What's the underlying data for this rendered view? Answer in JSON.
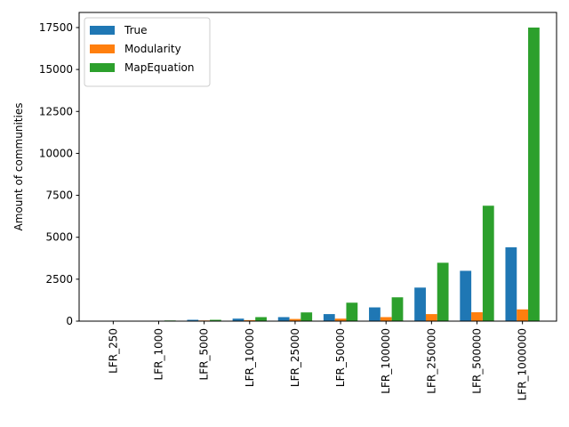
{
  "chart_data": {
    "type": "bar",
    "categories": [
      "LFR_250",
      "LFR_1000",
      "LFR_5000",
      "LFR_10000",
      "LFR_25000",
      "LFR_50000",
      "LFR_100000",
      "LFR_250000",
      "LFR_500000",
      "LFR_1000000"
    ],
    "series": [
      {
        "name": "True",
        "color": "#1f77b4",
        "values": [
          5,
          20,
          80,
          150,
          240,
          420,
          820,
          2000,
          3000,
          4400
        ]
      },
      {
        "name": "Modularity",
        "color": "#ff7f0e",
        "values": [
          10,
          20,
          40,
          60,
          130,
          150,
          240,
          420,
          530,
          700
        ]
      },
      {
        "name": "MapEquation",
        "color": "#2ca02c",
        "values": [
          15,
          40,
          80,
          240,
          520,
          1100,
          1420,
          3480,
          6880,
          17500
        ]
      }
    ],
    "title": "",
    "xlabel": "",
    "ylabel": "Amount of communities",
    "ylim": [
      0,
      18400
    ],
    "yticks": [
      0,
      2500,
      5000,
      7500,
      10000,
      12500,
      15000,
      17500
    ],
    "ytick_labels": [
      "0",
      "2500",
      "5000",
      "7500",
      "10000",
      "12500",
      "15000",
      "17500"
    ],
    "grid": false,
    "legend_position": "top-left"
  }
}
